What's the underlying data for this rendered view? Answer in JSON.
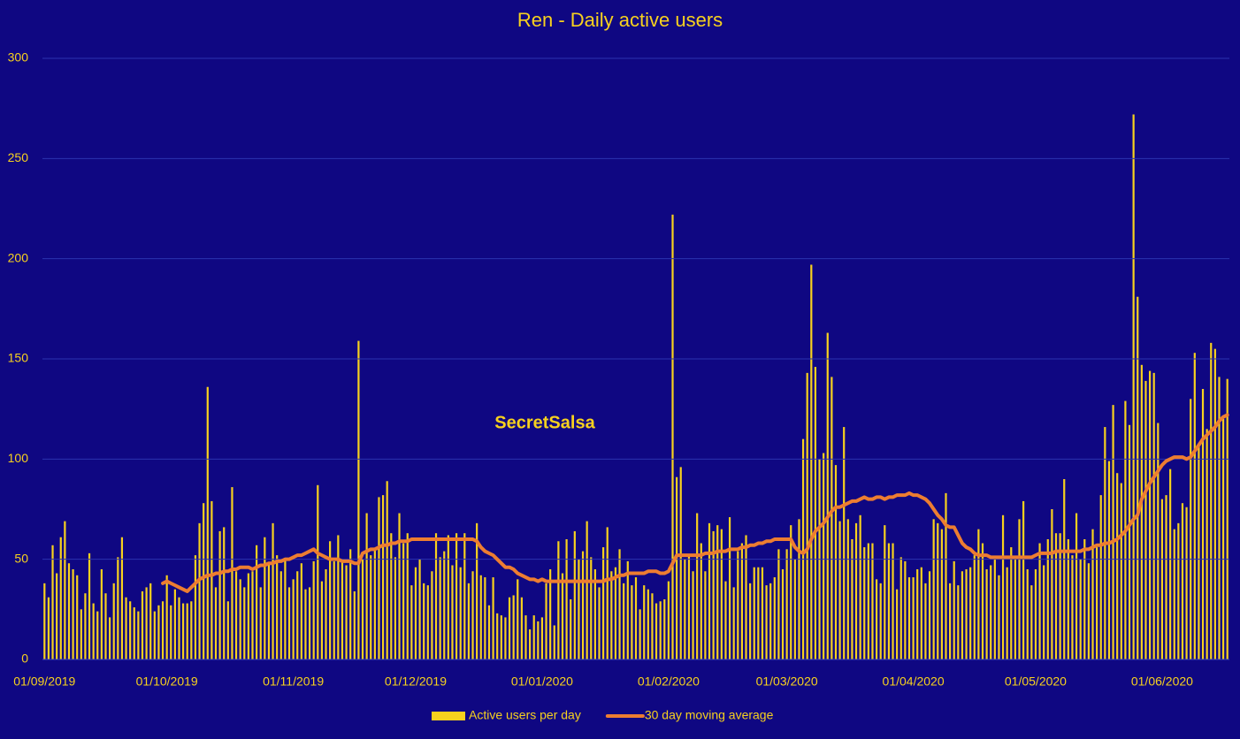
{
  "chart_data": {
    "type": "bar",
    "title": "Ren - Daily active users",
    "annotation": "SecretSalsa",
    "ylim": [
      0,
      300
    ],
    "yticks": [
      0,
      50,
      100,
      150,
      200,
      250,
      300
    ],
    "grid": true,
    "legend": "bottom",
    "categories": [
      "01/09/2019",
      null,
      null,
      null,
      null,
      null,
      null,
      null,
      null,
      null,
      null,
      null,
      null,
      null,
      null,
      null,
      null,
      null,
      null,
      null,
      null,
      null,
      null,
      null,
      null,
      null,
      null,
      null,
      null,
      null,
      "01/10/2019",
      null,
      null,
      null,
      null,
      null,
      null,
      null,
      null,
      null,
      null,
      null,
      null,
      null,
      null,
      null,
      null,
      null,
      null,
      null,
      null,
      null,
      null,
      null,
      null,
      null,
      null,
      null,
      null,
      null,
      null,
      "01/11/2019",
      null,
      null,
      null,
      null,
      null,
      null,
      null,
      null,
      null,
      null,
      null,
      null,
      null,
      null,
      null,
      null,
      null,
      null,
      null,
      null,
      null,
      null,
      null,
      null,
      null,
      null,
      null,
      null,
      null,
      "01/12/2019",
      null,
      null,
      null,
      null,
      null,
      null,
      null,
      null,
      null,
      null,
      null,
      null,
      null,
      null,
      null,
      null,
      null,
      null,
      null,
      null,
      null,
      null,
      null,
      null,
      null,
      null,
      null,
      null,
      null,
      null,
      "01/01/2020",
      null,
      null,
      null,
      null,
      null,
      null,
      null,
      null,
      null,
      null,
      null,
      null,
      null,
      null,
      null,
      null,
      null,
      null,
      null,
      null,
      null,
      null,
      null,
      null,
      null,
      null,
      null,
      null,
      null,
      null,
      "01/02/2020",
      null,
      null,
      null,
      null,
      null,
      null,
      null,
      null,
      null,
      null,
      null,
      null,
      null,
      null,
      null,
      null,
      null,
      null,
      null,
      null,
      null,
      null,
      null,
      null,
      null,
      null,
      null,
      null,
      "01/03/2020",
      null,
      null,
      null,
      null,
      null,
      null,
      null,
      null,
      null,
      null,
      null,
      null,
      null,
      null,
      null,
      null,
      null,
      null,
      null,
      null,
      null,
      null,
      null,
      null,
      null,
      null,
      null,
      null,
      null,
      null,
      "01/04/2020",
      null,
      null,
      null,
      null,
      null,
      null,
      null,
      null,
      null,
      null,
      null,
      null,
      null,
      null,
      null,
      null,
      null,
      null,
      null,
      null,
      null,
      null,
      null,
      null,
      null,
      null,
      null,
      null,
      null,
      "01/05/2020",
      null,
      null,
      null,
      null,
      null,
      null,
      null,
      null,
      null,
      null,
      null,
      null,
      null,
      null,
      null,
      null,
      null,
      null,
      null,
      null,
      null,
      null,
      null,
      null,
      null,
      null,
      null,
      null,
      null,
      null,
      "01/06/2020",
      null,
      null,
      null,
      null,
      null,
      null,
      null,
      null,
      null,
      null,
      null,
      null,
      null,
      null,
      null,
      null
    ],
    "series": [
      {
        "name": "Active users per day",
        "type": "bar",
        "color": "#f7d11e",
        "values": [
          38,
          31,
          57,
          43,
          61,
          69,
          48,
          45,
          42,
          25,
          33,
          53,
          28,
          24,
          45,
          33,
          21,
          38,
          51,
          61,
          31,
          29,
          26,
          24,
          34,
          36,
          38,
          24,
          27,
          29,
          42,
          27,
          35,
          31,
          28,
          28,
          29,
          52,
          68,
          78,
          136,
          79,
          36,
          64,
          66,
          29,
          86,
          44,
          40,
          36,
          43,
          44,
          57,
          36,
          61,
          48,
          68,
          52,
          44,
          50,
          36,
          40,
          44,
          48,
          35,
          36,
          49,
          87,
          39,
          45,
          59,
          49,
          62,
          49,
          47,
          55,
          34,
          159,
          50,
          73,
          52,
          55,
          81,
          82,
          89,
          63,
          51,
          73,
          58,
          63,
          37,
          46,
          50,
          38,
          37,
          44,
          63,
          51,
          54,
          62,
          47,
          63,
          46,
          63,
          38,
          44,
          68,
          42,
          41,
          27,
          41,
          23,
          22,
          21,
          31,
          32,
          40,
          31,
          22,
          15,
          22,
          19,
          21,
          38,
          45,
          17,
          59,
          43,
          60,
          30,
          64,
          50,
          54,
          69,
          51,
          45,
          36,
          56,
          66,
          44,
          46,
          55,
          38,
          49,
          37,
          41,
          25,
          37,
          35,
          33,
          28,
          29,
          30,
          39,
          222,
          91,
          96,
          50,
          52,
          44,
          73,
          58,
          44,
          68,
          64,
          67,
          65,
          39,
          71,
          36,
          54,
          58,
          62,
          38,
          46,
          46,
          46,
          37,
          38,
          41,
          55,
          45,
          55,
          67,
          50,
          70,
          110,
          143,
          197,
          146,
          100,
          103,
          163,
          141,
          97,
          69,
          116,
          70,
          60,
          68,
          72,
          56,
          58,
          58,
          40,
          38,
          67,
          58,
          58,
          35,
          51,
          49,
          41,
          41,
          45,
          46,
          38,
          44,
          70,
          68,
          65,
          83,
          38,
          49,
          37,
          44,
          45,
          46,
          52,
          65,
          58,
          45,
          47,
          50,
          42,
          72,
          46,
          56,
          51,
          70,
          79,
          45,
          37,
          45,
          58,
          47,
          60,
          75,
          63,
          63,
          90,
          60,
          52,
          73,
          50,
          60,
          48,
          65,
          56,
          82,
          116,
          99,
          127,
          93,
          88,
          129,
          117,
          272,
          181,
          147,
          139,
          144,
          143,
          118,
          80,
          82,
          95,
          65,
          68,
          78,
          76,
          130,
          153,
          107,
          135,
          115,
          158,
          155,
          141,
          120,
          140
        ]
      },
      {
        "name": "30 day moving average",
        "type": "line",
        "color": "#ed7d31",
        "values": [
          null,
          null,
          null,
          null,
          null,
          null,
          null,
          null,
          null,
          null,
          null,
          null,
          null,
          null,
          null,
          null,
          null,
          null,
          null,
          null,
          null,
          null,
          null,
          null,
          null,
          null,
          null,
          null,
          null,
          38,
          39,
          38,
          37,
          36,
          35,
          34,
          36,
          38,
          40,
          41,
          42,
          42,
          43,
          43,
          44,
          44,
          45,
          45,
          46,
          46,
          46,
          45,
          46,
          47,
          47,
          48,
          48,
          49,
          49,
          50,
          50,
          51,
          52,
          52,
          53,
          54,
          55,
          53,
          52,
          51,
          50,
          50,
          50,
          49,
          49,
          49,
          48,
          48,
          53,
          54,
          55,
          55,
          56,
          57,
          57,
          58,
          58,
          59,
          59,
          59,
          60,
          60,
          60,
          60,
          60,
          60,
          60,
          60,
          60,
          60,
          60,
          60,
          60,
          60,
          60,
          60,
          59,
          56,
          54,
          53,
          52,
          50,
          48,
          46,
          46,
          45,
          43,
          42,
          41,
          40,
          40,
          39,
          40,
          39,
          39,
          39,
          39,
          39,
          39,
          39,
          39,
          39,
          39,
          39,
          39,
          39,
          39,
          39,
          40,
          40,
          41,
          42,
          42,
          43,
          43,
          43,
          43,
          43,
          44,
          44,
          44,
          43,
          43,
          44,
          48,
          52,
          52,
          52,
          52,
          52,
          52,
          52,
          53,
          53,
          53,
          54,
          54,
          54,
          55,
          55,
          55,
          56,
          56,
          57,
          57,
          58,
          58,
          59,
          59,
          60,
          60,
          60,
          60,
          60,
          56,
          54,
          53,
          55,
          60,
          64,
          66,
          68,
          71,
          74,
          76,
          76,
          77,
          78,
          79,
          79,
          80,
          81,
          80,
          80,
          81,
          81,
          80,
          81,
          81,
          82,
          82,
          82,
          83,
          82,
          82,
          81,
          80,
          78,
          75,
          72,
          70,
          67,
          66,
          66,
          62,
          58,
          56,
          55,
          53,
          52,
          52,
          52,
          51,
          51,
          51,
          51,
          51,
          51,
          51,
          51,
          51,
          51,
          51,
          52,
          53,
          53,
          53,
          53,
          54,
          54,
          54,
          54,
          54,
          54,
          54,
          55,
          55,
          56,
          57,
          57,
          58,
          58,
          59,
          60,
          62,
          64,
          67,
          70,
          72,
          80,
          84,
          88,
          91,
          94,
          97,
          99,
          100,
          101,
          101,
          101,
          100,
          101,
          104,
          107,
          110,
          112,
          114,
          116,
          119,
          121,
          122
        ]
      }
    ]
  }
}
